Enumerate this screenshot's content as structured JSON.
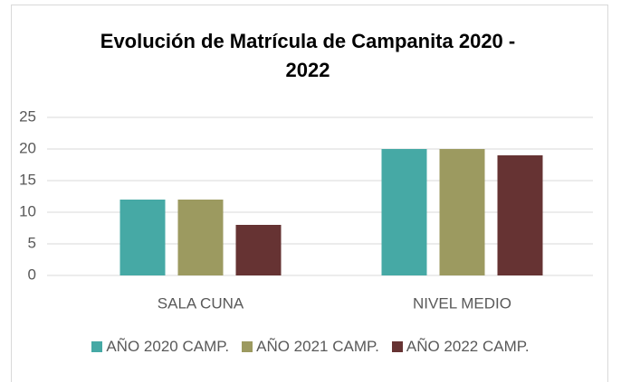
{
  "chart_data": {
    "type": "bar",
    "title": "Evolución de Matrícula de Campanita 2020 - 2022",
    "categories": [
      "SALA CUNA",
      "NIVEL MEDIO"
    ],
    "series": [
      {
        "name": "AÑO 2020 CAMP.",
        "color": "#46a9a5",
        "values": [
          12,
          20
        ]
      },
      {
        "name": "AÑO 2021 CAMP.",
        "color": "#9c9a60",
        "values": [
          12,
          20
        ]
      },
      {
        "name": "AÑO 2022 CAMP.",
        "color": "#663333",
        "values": [
          8,
          19
        ]
      }
    ],
    "ylim": [
      0,
      25
    ],
    "yticks": [
      0,
      5,
      10,
      15,
      20,
      25
    ],
    "grid": true,
    "legend": "bottom"
  }
}
